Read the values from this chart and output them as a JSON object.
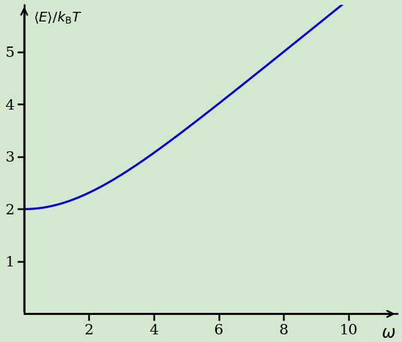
{
  "title": "",
  "ylabel_latex": "$\\langle E\\rangle/k_\\mathrm{B}T$",
  "xlabel_latex": "$\\omega$",
  "xmin": 0,
  "xmax": 11.5,
  "ymin": 0,
  "ymax": 5.9,
  "xticks": [
    2,
    4,
    6,
    8,
    10
  ],
  "yticks": [
    1,
    2,
    3,
    4,
    5
  ],
  "line_color": "#0000cc",
  "line_width": 2.2,
  "background_color": "#d4e8d0",
  "plot_start": 0.001,
  "plot_end": 11.3,
  "num_points": 2000
}
